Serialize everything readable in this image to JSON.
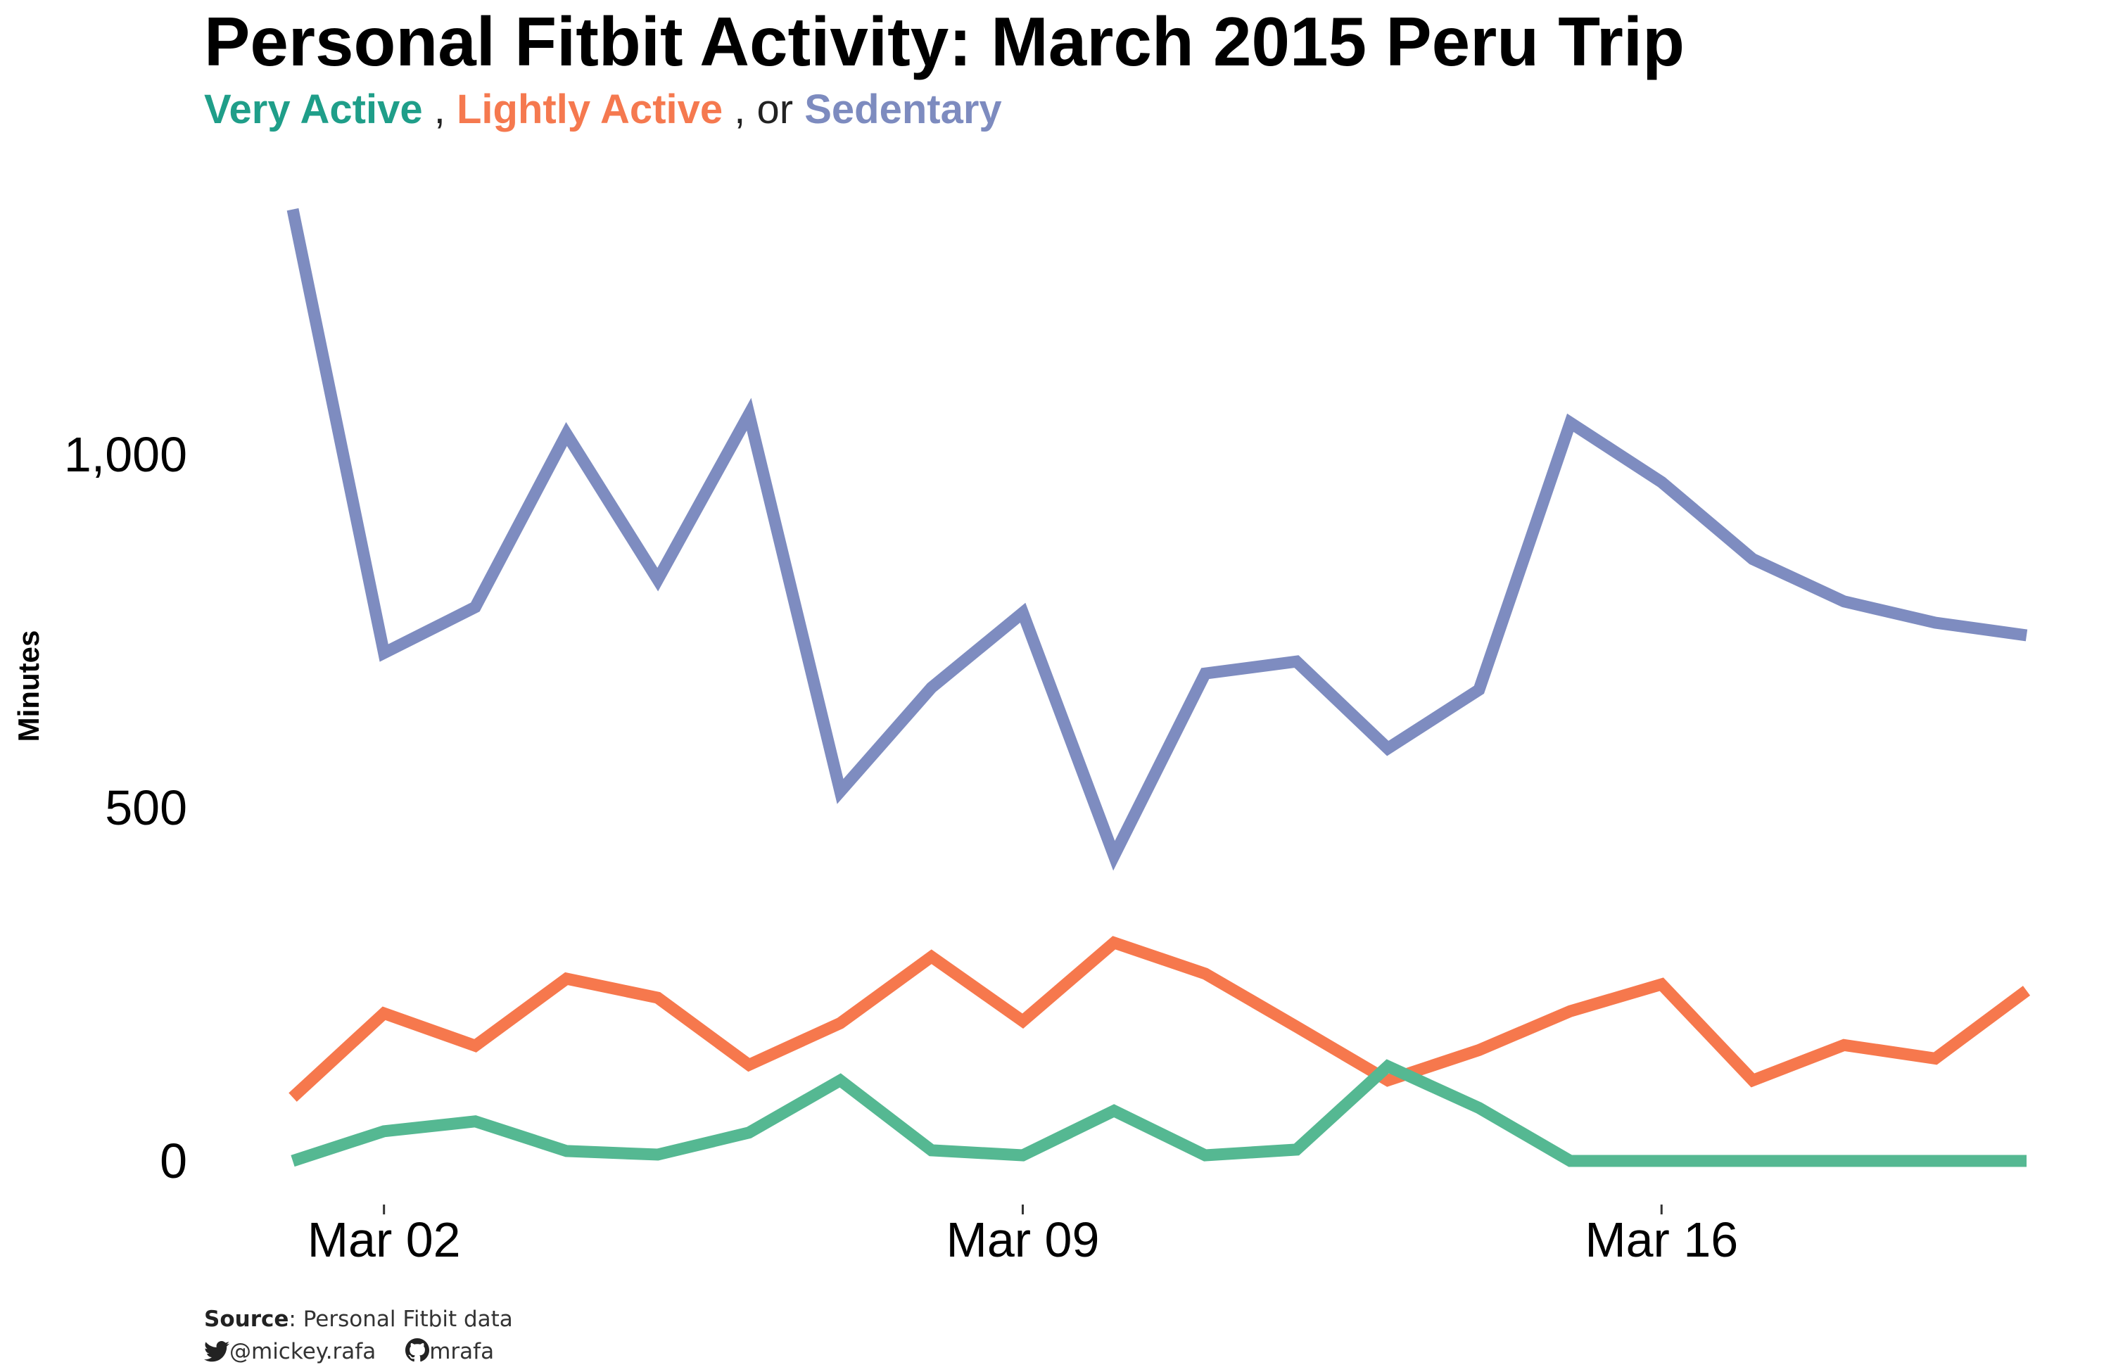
{
  "title": "Personal Fitbit Activity: March 2015 Peru Trip",
  "subtitle": {
    "very_active": "Very Active",
    "sep1": ",",
    "lightly_active": "Lightly Active",
    "sep2": ", or",
    "sedentary": "Sedentary"
  },
  "caption": {
    "source_label": "Source",
    "source_text": ": Personal Fitbit data",
    "twitter": "@mickey.rafa",
    "github": "mrafa"
  },
  "colors": {
    "very_active": "#55B892",
    "lightly_active": "#F6784D",
    "sedentary": "#7E8CC0",
    "subtitle_very_active": "#1F9E89",
    "subtitle_lightly_active": "#F5794F",
    "subtitle_sedentary": "#7D8BBF"
  },
  "icons": {
    "twitter": "twitter-bird-icon",
    "github": "github-octocat-icon"
  },
  "chart_data": {
    "type": "line",
    "title": "Personal Fitbit Activity: March 2015 Peru Trip",
    "xlabel": "",
    "ylabel": "Minutes",
    "x": [
      "2015-03-01",
      "2015-03-02",
      "2015-03-03",
      "2015-03-04",
      "2015-03-05",
      "2015-03-06",
      "2015-03-07",
      "2015-03-08",
      "2015-03-09",
      "2015-03-10",
      "2015-03-11",
      "2015-03-12",
      "2015-03-13",
      "2015-03-14",
      "2015-03-15",
      "2015-03-16",
      "2015-03-17",
      "2015-03-18",
      "2015-03-19",
      "2015-03-20"
    ],
    "x_ticks": [
      "2015-03-02",
      "2015-03-09",
      "2015-03-16"
    ],
    "x_tick_labels": [
      "Mar 02",
      "Mar 09",
      "Mar 16"
    ],
    "y_ticks": [
      0,
      500,
      1000
    ],
    "y_tick_labels": [
      "0",
      "500",
      "1,000"
    ],
    "xlim": [
      "2015-03-01",
      "2015-03-20"
    ],
    "ylim": [
      -70,
      1370
    ],
    "grid": false,
    "legend": "subtitle",
    "series": [
      {
        "name": "Sedentary",
        "color": "#7E8CC0",
        "values": [
          1347,
          719,
          784,
          1029,
          823,
          1057,
          523,
          670,
          776,
          432,
          690,
          707,
          584,
          667,
          1045,
          961,
          852,
          792,
          762,
          744
        ]
      },
      {
        "name": "Lightly Active",
        "color": "#F6784D",
        "values": [
          90,
          209,
          163,
          258,
          231,
          136,
          195,
          289,
          198,
          309,
          265,
          190,
          114,
          157,
          212,
          250,
          114,
          164,
          145,
          241
        ]
      },
      {
        "name": "Very Active",
        "color": "#55B892",
        "values": [
          0,
          42,
          56,
          14,
          9,
          40,
          114,
          15,
          8,
          71,
          8,
          16,
          134,
          75,
          0,
          0,
          0,
          0,
          0,
          0
        ]
      }
    ]
  }
}
